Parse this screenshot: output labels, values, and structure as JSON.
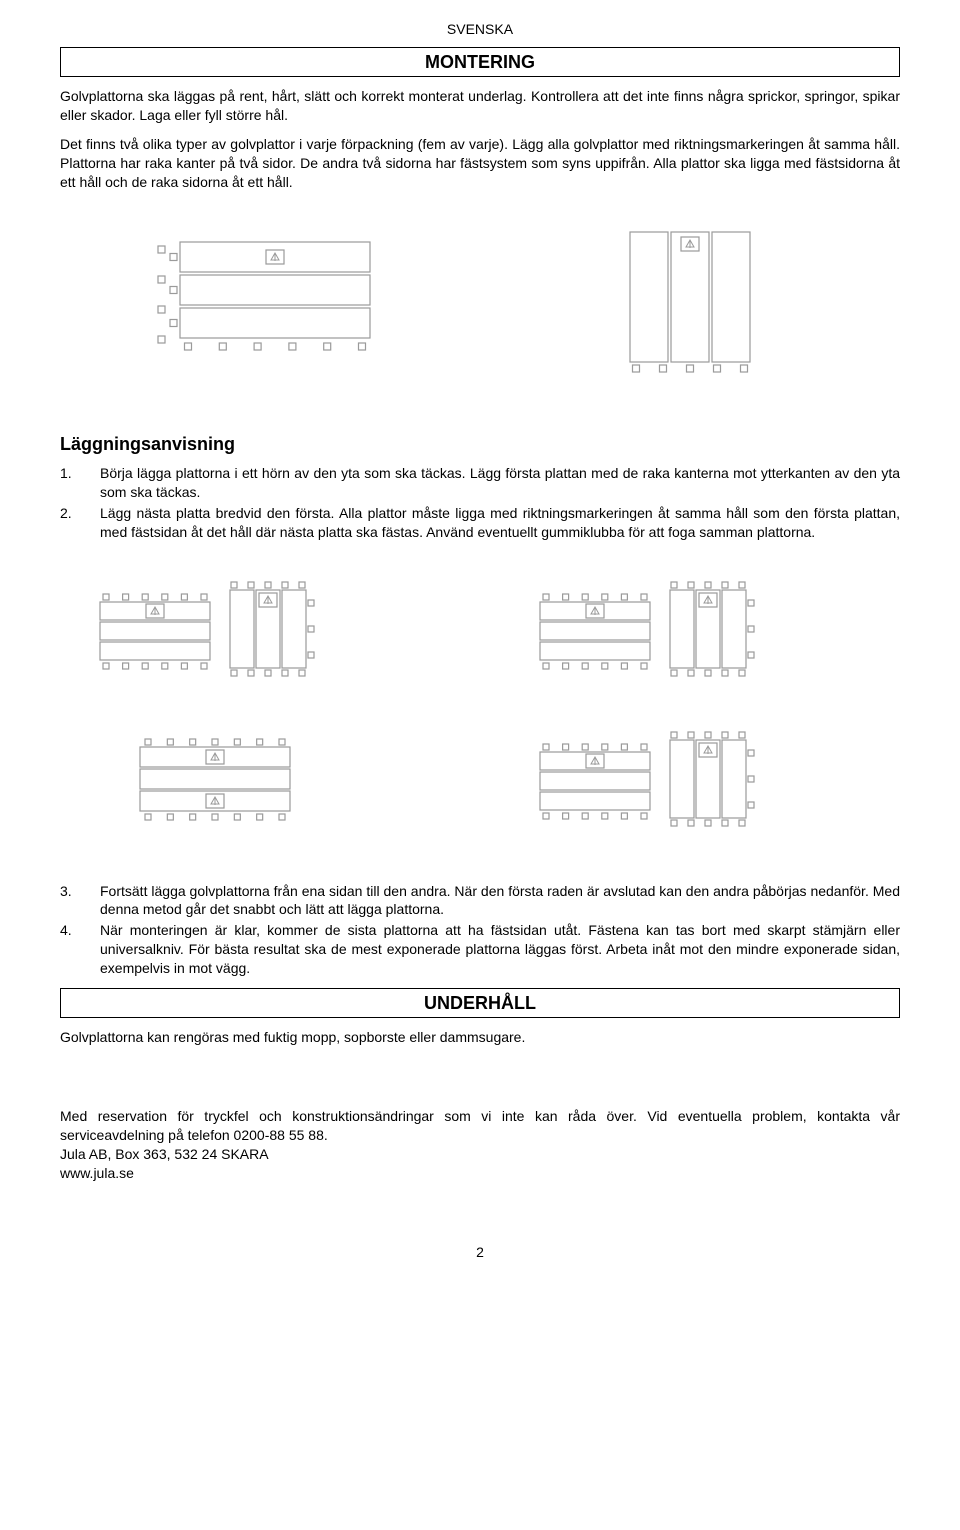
{
  "header": "SVENSKA",
  "section1_title": "MONTERING",
  "intro": "Golvplattorna ska läggas på rent, hårt, slätt och korrekt monterat underlag. Kontrollera att det inte finns några sprickor, springor, spikar eller skador. Laga eller fyll större hål.",
  "para2": "Det finns två olika typer av golvplattor i varje förpackning (fem av varje). Lägg alla golvplattor med riktningsmarkeringen åt samma håll. Plattorna har raka kanter på två sidor. De andra två sidorna har fästsystem som syns uppifrån. Alla plattor ska ligga med fästsidorna åt ett håll och de raka sidorna åt ett håll.",
  "subheading": "Läggningsanvisning",
  "step1": "Börja lägga plattorna i ett hörn av den yta som ska täckas. Lägg första plattan med de raka kanterna mot ytterkanten av den yta som ska täckas.",
  "step2": "Lägg nästa platta bredvid den första. Alla plattor måste ligga med riktningsmarkeringen åt samma håll som den första plattan, med fästsidan åt det håll där nästa platta ska fästas. Använd eventuellt gummiklubba för att foga samman plattorna.",
  "step3": "Fortsätt lägga golvplattorna från ena sidan till den andra. När den första raden är avslutad kan den andra påbörjas nedanför. Med denna metod går det snabbt och lätt att lägga plattorna.",
  "step4": "När monteringen är klar, kommer de sista plattorna att ha fästsidan utåt. Fästena kan tas bort med skarpt stämjärn eller universalkniv. För bästa resultat ska de mest exponerade plattorna läggas först. Arbeta inåt mot den mindre exponerade sidan, exempelvis in mot vägg.",
  "section2_title": "UNDERHÅLL",
  "maintenance": "Golvplattorna kan rengöras med fuktig mopp, sopborste eller dammsugare.",
  "footer1": "Med reservation för tryckfel och konstruktionsändringar som vi inte kan råda över. Vid eventuella problem, kontakta vår serviceavdelning på telefon 0200-88 55 88.",
  "footer2": "Jula AB, Box 363, 532 24 SKARA",
  "footer3": "www.jula.se",
  "page_number": "2",
  "diagram": {
    "stroke": "#9a9a9a",
    "fill": "#ffffff",
    "tab_size": 8,
    "plank_stroke_width": 1.2
  }
}
